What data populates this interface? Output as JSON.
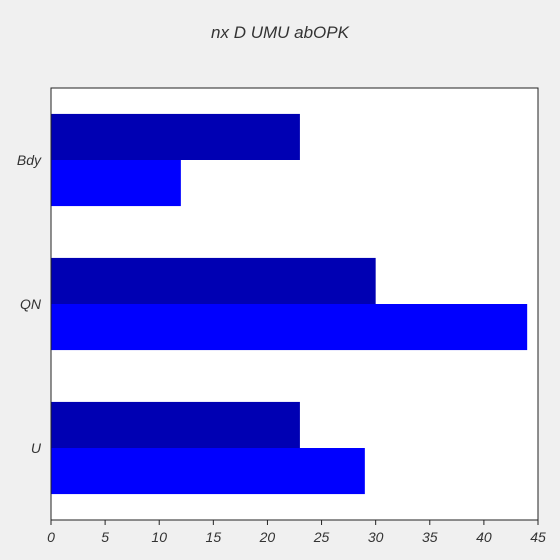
{
  "chart_data": {
    "type": "bar",
    "orientation": "horizontal",
    "title": "nx D UMU abOPK",
    "xlabel": "",
    "ylabel": "",
    "categories": [
      "Bdy",
      "QN",
      "U"
    ],
    "series": [
      {
        "values": [
          23,
          30,
          23
        ],
        "color": "#0000b3"
      },
      {
        "values": [
          12,
          44,
          29
        ],
        "color": "#0000ff"
      }
    ],
    "xlim": [
      0,
      45
    ],
    "xticks": [
      0,
      5,
      10,
      15,
      20,
      25,
      30,
      35,
      40,
      45
    ],
    "grid": false,
    "legend": "none",
    "background": "#ffffff",
    "figure_background": "#f0f0f0"
  }
}
